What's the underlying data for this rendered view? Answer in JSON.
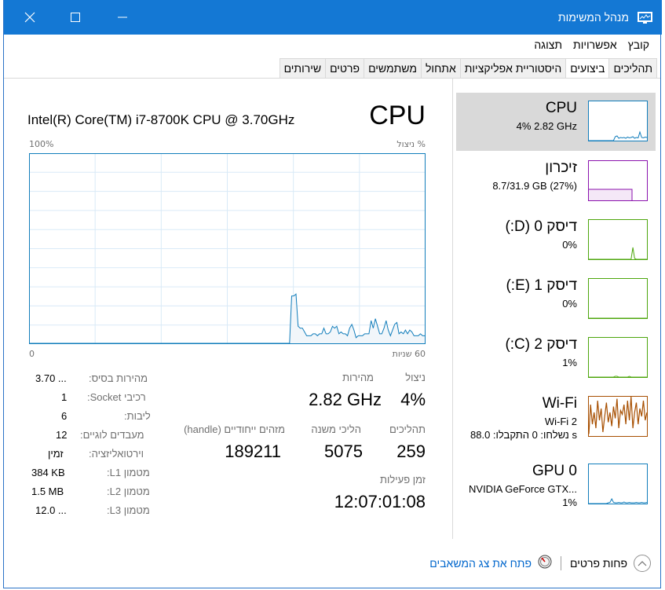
{
  "window": {
    "title": "מנהל המשימות",
    "controls": {
      "minimize": "minimize",
      "maximize": "maximize",
      "close": "close"
    }
  },
  "menu": [
    "קובץ",
    "אפשרויות",
    "תצוגה"
  ],
  "tabs": [
    "תהליכים",
    "ביצועים",
    "היסטוריית אפליקציות",
    "אתחול",
    "משתמשים",
    "פרטים",
    "שירותים"
  ],
  "active_tab": "ביצועים",
  "sidebar": {
    "items": [
      {
        "name": "CPU",
        "sub": "4%  2.82 GHz",
        "color": "#117dbb",
        "selected": true
      },
      {
        "name": "זיכרון",
        "sub": "8.7/31.9 GB (27%)",
        "color": "#8b12ae"
      },
      {
        "name": "דיסק 0 (D:)",
        "sub": "0%",
        "color": "#4da60c"
      },
      {
        "name": "דיסק 1 (E:)",
        "sub": "0%",
        "color": "#4da60c"
      },
      {
        "name": "דיסק 2 (C:)",
        "sub": "1%",
        "color": "#4da60c"
      },
      {
        "name": "Wi-Fi",
        "sub": "Wi-Fi 2",
        "sub2": "נשלחו: 0 התקבלו: 88.0 s",
        "color": "#a74f01"
      },
      {
        "name": "GPU 0",
        "sub": "NVIDIA GeForce GTX...",
        "sub2": "1%",
        "color": "#117dbb"
      }
    ]
  },
  "cpu": {
    "title": "CPU",
    "model": "Intel(R) Core(TM) i7-8700K CPU @ 3.70GHz",
    "axis_top_left": "100%",
    "axis_top_right": "% ניצול",
    "axis_bottom_left": "0",
    "axis_bottom_right": "60 שניות",
    "utilization_label": "ניצול",
    "utilization": "4%",
    "speed_label": "מהירות",
    "speed": "2.82 GHz",
    "processes_label": "תהליכים",
    "processes": "259",
    "threads_label": "הליכי משנה",
    "threads": "5075",
    "handles_label": "מזהים ייחודיים (handle)",
    "handles": "189211",
    "uptime_label": "זמן פעילות",
    "uptime": "12:07:01:08",
    "specs": [
      {
        "label": "מהירות בסיס:",
        "value": "3.70 ..."
      },
      {
        "label": "רכיבי Socket:",
        "value": "1"
      },
      {
        "label": "ליבות:",
        "value": "6"
      },
      {
        "label": "מעבדים לוגיים:",
        "value": "12"
      },
      {
        "label": "וירטואליזציה:",
        "value": "זמין"
      },
      {
        "label": "מטמון L1:",
        "value": "384 KB"
      },
      {
        "label": "מטמון L2:",
        "value": "1.5 MB"
      },
      {
        "label": "מטמון L3:",
        "value": "12.0 ..."
      }
    ],
    "history": [
      0,
      0,
      0,
      0,
      0,
      0,
      0,
      0,
      0,
      0,
      0,
      0,
      0,
      0,
      0,
      0,
      0,
      0,
      0,
      0,
      0,
      0,
      0,
      0,
      0,
      0,
      0,
      0,
      0,
      0,
      0,
      0,
      0,
      0,
      0,
      0,
      0,
      0,
      0,
      0,
      0,
      0,
      0,
      0,
      0,
      0,
      0,
      0,
      0,
      0,
      0,
      0,
      0,
      0,
      0,
      0,
      0,
      0,
      0,
      0,
      0,
      0,
      0,
      0,
      0,
      0,
      0,
      0,
      0,
      0,
      0,
      0,
      0,
      0,
      0,
      0,
      0,
      0,
      0,
      0,
      0,
      0,
      0,
      0,
      0,
      0,
      0,
      0,
      0,
      0,
      0,
      0,
      0,
      0,
      0,
      0,
      0,
      0,
      0,
      0,
      0,
      0,
      0,
      0,
      0,
      0,
      0,
      0,
      0,
      0,
      0,
      0,
      0,
      0,
      0,
      0,
      0,
      0,
      0,
      0,
      0,
      0,
      25,
      25,
      26,
      9,
      8,
      8,
      6,
      4,
      4,
      4,
      5,
      5,
      4,
      5,
      5,
      8,
      5,
      5,
      6,
      9,
      8,
      9,
      5,
      6,
      5,
      5,
      4,
      8,
      10,
      7,
      3,
      4,
      4,
      4,
      5,
      5,
      5,
      12,
      8,
      13,
      9,
      5,
      5,
      8,
      12,
      7,
      4,
      7,
      10,
      11,
      5,
      6,
      5,
      7,
      5,
      7,
      6,
      4,
      4,
      4,
      5,
      4,
      4
    ]
  },
  "footer": {
    "fewer_details": "פחות פרטים",
    "open_monitor": "פתח את צג המשאבים"
  }
}
